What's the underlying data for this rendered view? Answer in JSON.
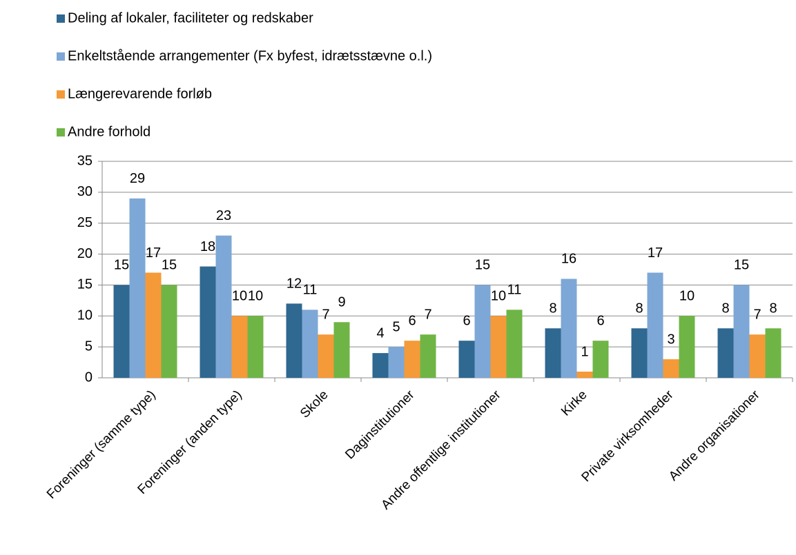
{
  "chart_data": {
    "type": "bar",
    "categories": [
      "Foreninger (samme type)",
      "Foreninger (anden type)",
      "Skole",
      "Daginstitutioner",
      "Andre offentlige institutioner",
      "Kirke",
      "Private virksomheder",
      "Andre organisationer"
    ],
    "series": [
      {
        "name": "Deling af lokaler, faciliteter og redskaber",
        "color": "#2f6891",
        "values": [
          15,
          18,
          12,
          4,
          6,
          8,
          8,
          8
        ]
      },
      {
        "name": "Enkeltstående arrangementer (Fx byfest, idrætsstævne o.l.)",
        "color": "#7da7d6",
        "values": [
          29,
          23,
          11,
          5,
          15,
          16,
          17,
          15
        ]
      },
      {
        "name": "Længerevarende forløb",
        "color": "#f59a38",
        "values": [
          17,
          10,
          7,
          6,
          10,
          1,
          3,
          7
        ]
      },
      {
        "name": "Andre forhold",
        "color": "#6fb546",
        "values": [
          15,
          10,
          9,
          7,
          11,
          6,
          10,
          8
        ]
      }
    ],
    "ylim": [
      0,
      35
    ],
    "yticks": [
      0,
      5,
      10,
      15,
      20,
      25,
      30,
      35
    ],
    "grid": true,
    "legend": "top-left"
  }
}
